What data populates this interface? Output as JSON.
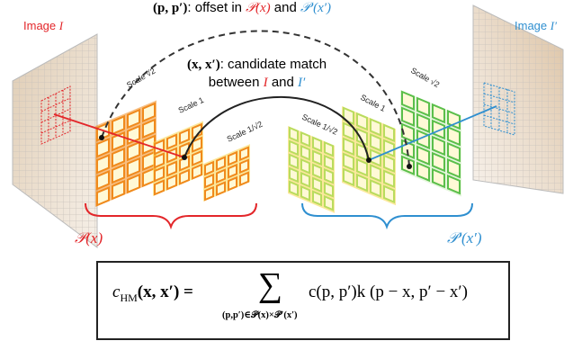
{
  "top_label": {
    "pair": "(p, p′)",
    "text": ": offset in ",
    "px": "𝒫(x)",
    "and": " and ",
    "ppx": "𝒫′(x′)"
  },
  "middle_label": {
    "pair": "(x, x′)",
    "line1": ": candidate match",
    "line2_prefix": "between ",
    "I": "I",
    "and": " and ",
    "Ip": "I′"
  },
  "image_left": {
    "prefix": "Image ",
    "name": "I"
  },
  "image_right": {
    "prefix": "Image ",
    "name": "I′"
  },
  "scales_left": [
    "Scale √2",
    "Scale 1",
    "Scale 1/√2"
  ],
  "scales_right": [
    "Scale 1/√2",
    "Scale 1",
    "Scale √2"
  ],
  "brace_left": "𝒫(x)",
  "brace_right": "𝒫′(x′)",
  "formula": {
    "lhs": "c",
    "lhs_sub": "HM",
    "lhs_args": "(x, x′) =",
    "sum": "∑",
    "sum_sub": "(p,p′)∈𝒫(x)×𝒫′(x′)",
    "rhs": "c(p, p′)k (p − x, p′ − x′)"
  },
  "colors": {
    "red": "#e3262a",
    "blue": "#2f8fd0",
    "orange": "#f08a1c",
    "yellow": "#f7d54a",
    "green": "#5bbf4a",
    "lightgreen": "#b9dc5e"
  }
}
